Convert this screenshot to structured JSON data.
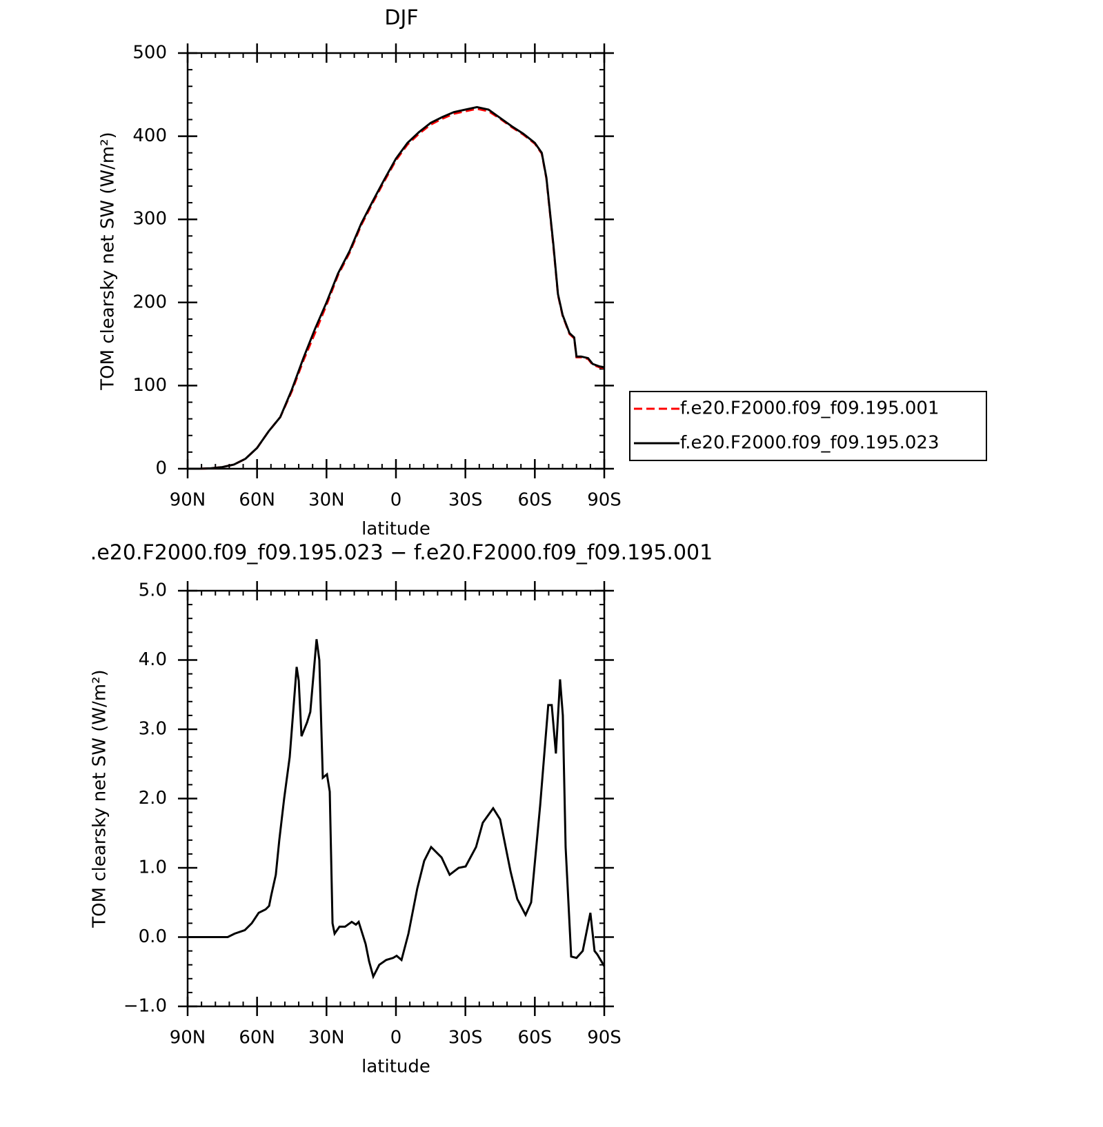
{
  "chart_data": [
    {
      "type": "line",
      "title": "DJF",
      "xlabel": "latitude",
      "ylabel": "TOM clearsky net SW (W/m²)",
      "x": [
        90,
        85,
        80,
        75,
        70,
        65,
        60,
        55,
        50,
        45,
        40,
        35,
        30,
        25,
        20,
        15,
        10,
        5,
        0,
        -5,
        -10,
        -15,
        -20,
        -25,
        -30,
        -35,
        -40,
        -45,
        -50,
        -55,
        -60,
        -63,
        -65,
        -68,
        -70,
        -72,
        -75,
        -77,
        -78,
        -80,
        -83,
        -85,
        -88,
        -90
      ],
      "series": [
        {
          "name": "f.e20.F2000.f09_f09.195.001",
          "color": "#ff0000",
          "linestyle": "dashed",
          "values": [
            0,
            0,
            0.5,
            2,
            5,
            12,
            25,
            45,
            62,
            93,
            130,
            163,
            197,
            233,
            260,
            293,
            320,
            346,
            371,
            390,
            403,
            414,
            421,
            427,
            430,
            433,
            430,
            421,
            411,
            402,
            391,
            379,
            349,
            268,
            209,
            184,
            162,
            157,
            134,
            134,
            132,
            125,
            122,
            121
          ]
        },
        {
          "name": "f.e20.F2000.f09_f09.195.023",
          "color": "#000000",
          "linestyle": "solid",
          "values": [
            0,
            0,
            0.5,
            2,
            5,
            12,
            25,
            45,
            62,
            95,
            133,
            168,
            200,
            235,
            262,
            295,
            322,
            348,
            373,
            392,
            405,
            416,
            423,
            429,
            432,
            435,
            432,
            422,
            412,
            403,
            392,
            380,
            350,
            270,
            210,
            185,
            163,
            158,
            135,
            135,
            133,
            126,
            123,
            122
          ]
        }
      ],
      "xlim": [
        90,
        -90
      ],
      "xticks": [
        {
          "value": 90,
          "label": "90N"
        },
        {
          "value": 60,
          "label": "60N"
        },
        {
          "value": 30,
          "label": "30N"
        },
        0,
        {
          "value": -30,
          "label": "30S"
        },
        {
          "value": -60,
          "label": "60S"
        },
        {
          "value": -90,
          "label": "90S"
        }
      ],
      "ylim": [
        0,
        500
      ],
      "yticks": [
        0,
        100,
        200,
        300,
        400,
        500
      ],
      "legend": "right"
    },
    {
      "type": "line",
      "title": ".e20.F2000.f09_f09.195.023 − f.e20.F2000.f09_f09.195.001",
      "xlabel": "latitude",
      "ylabel": "TOM clearsky net SW (W/m²)",
      "x": [
        90,
        72.7,
        69.7,
        65.3,
        62.3,
        59.3,
        56.3,
        54.8,
        53.9,
        51.9,
        50.4,
        48.3,
        45.9,
        42.9,
        42,
        40.8,
        38.4,
        37,
        34.3,
        33.1,
        31.6,
        29.8,
        28.6,
        27.4,
        26.5,
        24.4,
        22,
        19.1,
        17.3,
        16.1,
        13.1,
        11.6,
        9.8,
        7.2,
        4.2,
        1.2,
        -0.3,
        -2.4,
        -5.4,
        -9.2,
        -12.2,
        -15.2,
        -19.7,
        -23.2,
        -27.1,
        -30.1,
        -34.6,
        -37.5,
        -42,
        -45,
        -49.5,
        -52.4,
        -56,
        -58.4,
        -62.3,
        -65.8,
        -67.3,
        -69.1,
        -70.9,
        -72.1,
        -73.3,
        -75.7,
        -78,
        -80.7,
        -82.2,
        -84,
        -85.8,
        -87,
        -90
      ],
      "series": [
        {
          "name": null,
          "color": "#000000",
          "linestyle": "solid",
          "values": [
            0,
            0,
            0.05,
            0.1,
            0.2,
            0.35,
            0.4,
            0.45,
            0.6,
            0.9,
            1.4,
            2.0,
            2.6,
            3.9,
            3.7,
            2.9,
            3.1,
            3.25,
            4.3,
            4.0,
            2.3,
            2.35,
            2.1,
            0.2,
            0.05,
            0.15,
            0.15,
            0.22,
            0.18,
            0.22,
            -0.1,
            -0.35,
            -0.57,
            -0.4,
            -0.33,
            -0.3,
            -0.27,
            -0.33,
            0.05,
            0.7,
            1.1,
            1.3,
            1.15,
            0.9,
            1.0,
            1.02,
            1.3,
            1.65,
            1.86,
            1.7,
            0.95,
            0.55,
            0.32,
            0.5,
            1.9,
            3.35,
            3.35,
            2.65,
            3.72,
            3.2,
            1.3,
            -0.28,
            -0.3,
            -0.2,
            0.05,
            0.35,
            -0.2,
            -0.25,
            -0.42
          ]
        }
      ],
      "xlim": [
        90,
        -90
      ],
      "xticks": [
        {
          "value": 90,
          "label": "90N"
        },
        {
          "value": 60,
          "label": "60N"
        },
        {
          "value": 30,
          "label": "30N"
        },
        0,
        {
          "value": -30,
          "label": "30S"
        },
        {
          "value": -60,
          "label": "60S"
        },
        {
          "value": -90,
          "label": "90S"
        }
      ],
      "ylim": [
        -1,
        5
      ],
      "yticks": [
        {
          "value": -1,
          "label": "−1.0"
        },
        {
          "value": 0,
          "label": "0.0"
        },
        {
          "value": 1,
          "label": "1.0"
        },
        {
          "value": 2,
          "label": "2.0"
        },
        {
          "value": 3,
          "label": "3.0"
        },
        {
          "value": 4,
          "label": "4.0"
        },
        {
          "value": 5,
          "label": "5.0"
        }
      ]
    }
  ]
}
